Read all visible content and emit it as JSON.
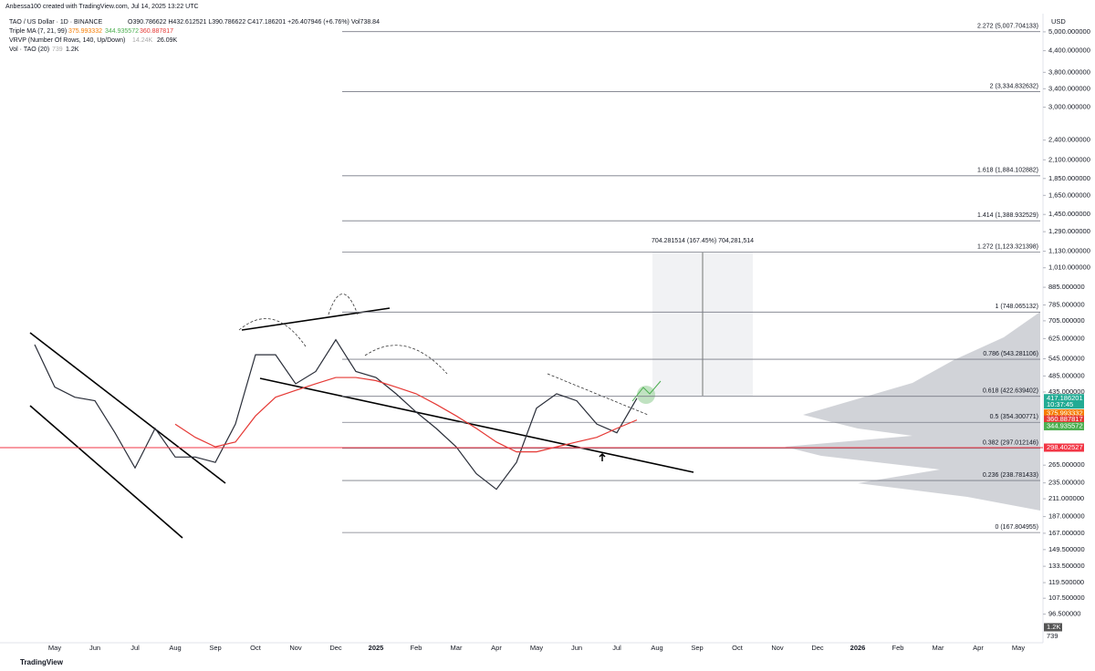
{
  "header": {
    "author": "Anbessa100 created with TradingView.com, Jul 14, 2025 13:22 UTC",
    "symbol": "TAO / US Dollar · 1D · BINANCE",
    "ohlc": "O390.786622 H432.612521 L390.786622 C417.186201 +26.407946 (+6.76%) Vol738.84",
    "ma": "Triple MA (7, 21, 99)",
    "ma_values": [
      "375.993332",
      "344.935572",
      "360.887817"
    ],
    "vrvp": "VRVP (Number Of Rows, 140, Up/Down)",
    "vrvp_values": [
      "14.24K",
      "26.09K"
    ],
    "vol": "Vol · TAO (20)",
    "vol_values": [
      "739",
      "1.2K"
    ],
    "footer": "TradingView"
  },
  "chart_data": {
    "type": "line",
    "log_scale": true,
    "currency": "USD",
    "categories": [
      null,
      "May",
      null,
      "Jun",
      null,
      "Jul",
      null,
      "Aug",
      null,
      "Sep",
      null,
      "Oct",
      null,
      "Nov",
      null,
      "Dec",
      null,
      "2025",
      null,
      "Feb",
      null,
      "Mar",
      null,
      "Apr",
      null,
      "May",
      null,
      "Jun",
      null,
      "Jul",
      null,
      "Aug",
      null,
      "Sep",
      null,
      "Oct",
      null,
      "Nov",
      null,
      "Dec",
      null,
      "2026",
      null,
      "Feb",
      null,
      "Mar",
      null,
      "Apr",
      null,
      "May"
    ],
    "series": [
      {
        "color": "#2a2e39",
        "values": [
          600,
          450,
          420,
          410,
          330,
          260,
          340,
          280,
          280,
          270,
          350,
          560,
          560,
          460,
          500,
          620,
          500,
          480,
          430,
          380,
          340,
          300,
          250,
          225,
          270,
          390,
          430,
          410,
          350,
          330,
          417,
          null,
          null,
          null,
          null,
          null,
          null,
          null,
          null,
          null,
          null,
          null,
          null,
          null,
          null,
          null,
          null,
          null,
          null,
          null
        ]
      },
      {
        "color": "#e53935",
        "values": [
          null,
          null,
          null,
          null,
          null,
          null,
          null,
          350,
          320,
          300,
          310,
          370,
          420,
          440,
          460,
          480,
          480,
          470,
          450,
          430,
          400,
          370,
          340,
          310,
          290,
          290,
          300,
          310,
          320,
          340,
          360,
          null,
          null,
          null,
          null,
          null,
          null,
          null,
          null,
          null,
          null,
          null,
          null,
          null,
          null,
          null,
          null,
          null,
          null,
          null
        ]
      }
    ],
    "ylim": [
      82,
      5655
    ],
    "yticks": [
      {
        "value": 5000,
        "label": "5,000.000000"
      },
      {
        "value": 4400,
        "label": "4,400.000000"
      },
      {
        "value": 3800,
        "label": "3,800.000000"
      },
      {
        "value": 3400,
        "label": "3,400.000000"
      },
      {
        "value": 3000,
        "label": "3,000.000000"
      },
      {
        "value": 2400,
        "label": "2,400.000000"
      },
      {
        "value": 2100,
        "label": "2,100.000000"
      },
      {
        "value": 1850,
        "label": "1,850.000000"
      },
      {
        "value": 1650,
        "label": "1,650.000000"
      },
      {
        "value": 1450,
        "label": "1,450.000000"
      },
      {
        "value": 1290,
        "label": "1,290.000000"
      },
      {
        "value": 1130,
        "label": "1,130.000000"
      },
      {
        "value": 1010,
        "label": "1,010.000000"
      },
      {
        "value": 885,
        "label": "885.000000"
      },
      {
        "value": 785,
        "label": "785.000000"
      },
      {
        "value": 705,
        "label": "705.000000"
      },
      {
        "value": 625,
        "label": "625.000000"
      },
      {
        "value": 545,
        "label": "545.000000"
      },
      {
        "value": 485,
        "label": "485.000000"
      },
      {
        "value": 435,
        "label": "435.000000"
      },
      {
        "value": 265,
        "label": "265.000000"
      },
      {
        "value": 235,
        "label": "235.000000"
      },
      {
        "value": 211,
        "label": "211.000000"
      },
      {
        "value": 187,
        "label": "187.000000"
      },
      {
        "value": 167,
        "label": "167.000000"
      },
      {
        "value": 149.5,
        "label": "149.500000"
      },
      {
        "value": 133.5,
        "label": "133.500000"
      },
      {
        "value": 119.5,
        "label": "119.500000"
      },
      {
        "value": 107.5,
        "label": "107.500000"
      },
      {
        "value": 96.5,
        "label": "96.500000"
      }
    ],
    "fib_levels": [
      {
        "value": 5007.704133,
        "label": "2.272 (5,007.704133)"
      },
      {
        "value": 3334.832632,
        "label": "2 (3,334.832632)"
      },
      {
        "value": 1884.102882,
        "label": "1.618 (1,884.102882)"
      },
      {
        "value": 1388.932529,
        "label": "1.414 (1,388.932529)"
      },
      {
        "value": 1123.321398,
        "label": "1.272 (1,123.321398)"
      },
      {
        "value": 748.065132,
        "label": "1 (748.065132)"
      },
      {
        "value": 543.281106,
        "label": "0.786 (543.281106)"
      },
      {
        "value": 422.639402,
        "label": "0.618 (422.639402)"
      },
      {
        "value": 354.300771,
        "label": "0.5 (354.300771)"
      },
      {
        "value": 297.012146,
        "label": "0.382 (297.012146)"
      },
      {
        "value": 238.781433,
        "label": "0.236 (238.781433)"
      },
      {
        "value": 167.804955,
        "label": "0 (167.804955)"
      }
    ],
    "badges": [
      {
        "value": 417.186201,
        "color": "#22ab94",
        "sub": "10:37:45"
      },
      {
        "value": 375.993332,
        "color": "#f57c00"
      },
      {
        "value": 360.887817,
        "color": "#e53935"
      },
      {
        "value": 344.935572,
        "color": "#4caf50"
      },
      {
        "value": 298.402527,
        "color": "#f23645"
      }
    ],
    "measure_label": "704.281514 (167.45%) 704,281,514",
    "volume_badges": [
      "1.2K",
      "739"
    ]
  }
}
